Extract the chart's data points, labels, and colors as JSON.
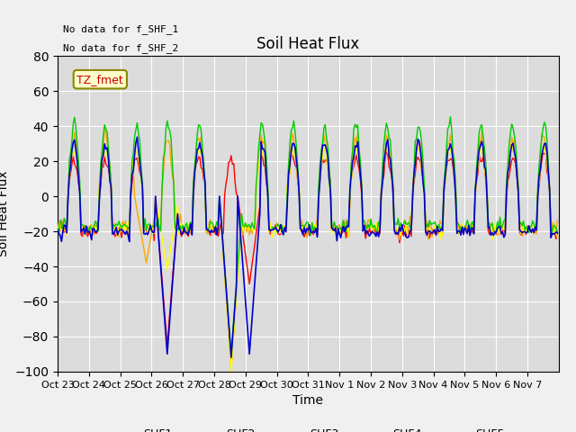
{
  "title": "Soil Heat Flux",
  "xlabel": "Time",
  "ylabel": "Soil Heat Flux",
  "ylim": [
    -100,
    80
  ],
  "yticks": [
    -100,
    -80,
    -60,
    -40,
    -20,
    0,
    20,
    40,
    60,
    80
  ],
  "text_annotations": [
    "No data for f_SHF_1",
    "No data for f_SHF_2"
  ],
  "legend_label": "TZ_fmet",
  "legend_colors": {
    "SHF1": "#ff0000",
    "SHF2": "#ffa500",
    "SHF3": "#ffff00",
    "SHF4": "#00cc00",
    "SHF5": "#0000cd"
  },
  "tick_labels": [
    "Oct 23",
    "Oct 24",
    "Oct 25",
    "Oct 26",
    "Oct 27",
    "Oct 28",
    "Oct 29",
    "Oct 30",
    "Oct 31",
    "Nov 1",
    "Nov 2",
    "Nov 3",
    "Nov 4",
    "Nov 5",
    "Nov 6",
    "Nov 7"
  ],
  "n_days": 16,
  "n_points": 384
}
